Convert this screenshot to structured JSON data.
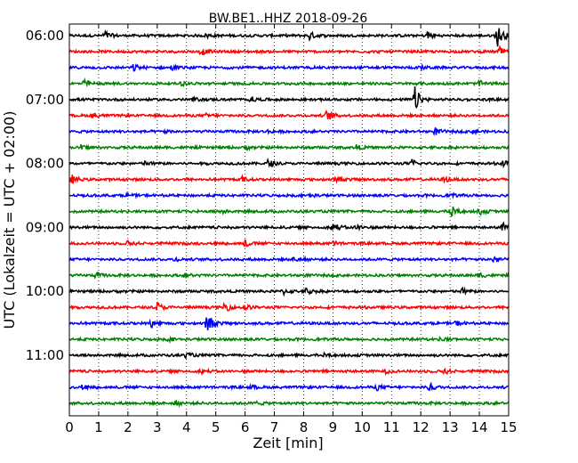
{
  "chart_data": {
    "type": "line",
    "title": "BW.BE1..HHZ 2018-09-26",
    "xlabel": "Zeit  [min]",
    "ylabel": "UTC (Lokalzeit = UTC + 02:00)",
    "xlim": [
      0,
      15
    ],
    "x_ticks": [
      "0",
      "1",
      "2",
      "3",
      "4",
      "5",
      "6",
      "7",
      "8",
      "9",
      "10",
      "11",
      "12",
      "13",
      "14",
      "15"
    ],
    "y_ticks": [
      "06:00",
      "07:00",
      "08:00",
      "09:00",
      "10:00",
      "11:00"
    ],
    "grid": "vertical-dotted",
    "color_cycle": [
      "#000000",
      "#ff0000",
      "#0000ff",
      "#008000"
    ],
    "series": [
      {
        "start": "06:00",
        "color": "#000000",
        "events": [
          {
            "t": 1.2,
            "a": 0.6
          },
          {
            "t": 4.7,
            "a": 0.3
          },
          {
            "t": 8.2,
            "a": 0.5
          },
          {
            "t": 12.2,
            "a": 0.7
          },
          {
            "t": 14.6,
            "a": 1.6
          }
        ]
      },
      {
        "start": "06:15",
        "color": "#ff0000",
        "events": [
          {
            "t": 4.5,
            "a": 0.4
          },
          {
            "t": 14.7,
            "a": 0.5
          }
        ]
      },
      {
        "start": "06:30",
        "color": "#0000ff",
        "events": [
          {
            "t": 2.2,
            "a": 0.4
          },
          {
            "t": 3.5,
            "a": 0.3
          },
          {
            "t": 12.0,
            "a": 0.2
          }
        ]
      },
      {
        "start": "06:45",
        "color": "#008000",
        "events": [
          {
            "t": 0.5,
            "a": 0.4
          },
          {
            "t": 3.8,
            "a": 0.2
          },
          {
            "t": 14.0,
            "a": 0.3
          }
        ]
      },
      {
        "start": "07:00",
        "color": "#000000",
        "events": [
          {
            "t": 4.2,
            "a": 0.2
          },
          {
            "t": 6.2,
            "a": 0.3
          },
          {
            "t": 11.8,
            "a": 1.5
          }
        ]
      },
      {
        "start": "07:15",
        "color": "#ff0000",
        "events": [
          {
            "t": 0.8,
            "a": 0.4
          },
          {
            "t": 4.7,
            "a": 0.2
          },
          {
            "t": 8.8,
            "a": 0.7
          }
        ]
      },
      {
        "start": "07:30",
        "color": "#0000ff",
        "events": [
          {
            "t": 3.2,
            "a": 0.2
          },
          {
            "t": 6.8,
            "a": 0.2
          },
          {
            "t": 12.5,
            "a": 0.4
          },
          {
            "t": 13.8,
            "a": 0.3
          }
        ]
      },
      {
        "start": "07:45",
        "color": "#008000",
        "events": [
          {
            "t": 0.4,
            "a": 0.3
          },
          {
            "t": 6.0,
            "a": 0.2
          },
          {
            "t": 9.8,
            "a": 0.3
          }
        ]
      },
      {
        "start": "08:00",
        "color": "#000000",
        "events": [
          {
            "t": 2.6,
            "a": 0.3
          },
          {
            "t": 6.8,
            "a": 0.5
          },
          {
            "t": 11.7,
            "a": 0.5
          },
          {
            "t": 14.8,
            "a": 0.4
          }
        ]
      },
      {
        "start": "08:15",
        "color": "#ff0000",
        "events": [
          {
            "t": 0.1,
            "a": 0.5
          },
          {
            "t": 5.9,
            "a": 0.3
          },
          {
            "t": 9.1,
            "a": 0.3
          },
          {
            "t": 12.8,
            "a": 0.3
          }
        ]
      },
      {
        "start": "08:30",
        "color": "#0000ff",
        "events": [
          {
            "t": 2.0,
            "a": 0.2
          },
          {
            "t": 8.2,
            "a": 0.2
          },
          {
            "t": 13.0,
            "a": 0.2
          }
        ]
      },
      {
        "start": "08:45",
        "color": "#008000",
        "events": [
          {
            "t": 5.2,
            "a": 0.2
          },
          {
            "t": 13.0,
            "a": 1.0
          },
          {
            "t": 14.0,
            "a": 0.4
          }
        ]
      },
      {
        "start": "09:00",
        "color": "#000000",
        "events": [
          {
            "t": 9.0,
            "a": 0.6
          },
          {
            "t": 9.8,
            "a": 0.4
          },
          {
            "t": 14.8,
            "a": 0.5
          }
        ]
      },
      {
        "start": "09:15",
        "color": "#ff0000",
        "events": [
          {
            "t": 2.0,
            "a": 0.3
          },
          {
            "t": 6.0,
            "a": 0.4
          },
          {
            "t": 9.0,
            "a": 0.2
          }
        ]
      },
      {
        "start": "09:30",
        "color": "#0000ff",
        "events": [
          {
            "t": 3.6,
            "a": 0.2
          },
          {
            "t": 7.7,
            "a": 0.4
          },
          {
            "t": 14.5,
            "a": 0.5
          }
        ]
      },
      {
        "start": "09:45",
        "color": "#008000",
        "events": [
          {
            "t": 0.9,
            "a": 0.3
          },
          {
            "t": 4.0,
            "a": 0.2
          },
          {
            "t": 14.0,
            "a": 0.3
          }
        ]
      },
      {
        "start": "10:00",
        "color": "#000000",
        "events": [
          {
            "t": 7.3,
            "a": 0.4
          },
          {
            "t": 8.1,
            "a": 0.4
          },
          {
            "t": 13.4,
            "a": 0.4
          }
        ]
      },
      {
        "start": "10:15",
        "color": "#ff0000",
        "events": [
          {
            "t": 3.0,
            "a": 0.6
          },
          {
            "t": 5.3,
            "a": 0.6
          },
          {
            "t": 6.0,
            "a": 0.3
          }
        ]
      },
      {
        "start": "10:30",
        "color": "#0000ff",
        "events": [
          {
            "t": 2.8,
            "a": 0.5
          },
          {
            "t": 4.7,
            "a": 1.3
          },
          {
            "t": 13.2,
            "a": 0.3
          }
        ]
      },
      {
        "start": "10:45",
        "color": "#008000",
        "events": [
          {
            "t": 3.4,
            "a": 0.2
          },
          {
            "t": 12.7,
            "a": 0.3
          }
        ]
      },
      {
        "start": "11:00",
        "color": "#000000",
        "events": [
          {
            "t": 4.0,
            "a": 0.3
          },
          {
            "t": 8.7,
            "a": 0.2
          }
        ]
      },
      {
        "start": "11:15",
        "color": "#ff0000",
        "events": [
          {
            "t": 4.5,
            "a": 0.2
          },
          {
            "t": 10.8,
            "a": 0.2
          },
          {
            "t": 12.8,
            "a": 0.3
          }
        ]
      },
      {
        "start": "11:30",
        "color": "#0000ff",
        "events": [
          {
            "t": 0.4,
            "a": 0.3
          },
          {
            "t": 6.2,
            "a": 0.2
          },
          {
            "t": 10.5,
            "a": 0.3
          },
          {
            "t": 12.3,
            "a": 0.5
          }
        ]
      },
      {
        "start": "11:45",
        "color": "#008000",
        "events": [
          {
            "t": 3.6,
            "a": 0.3
          },
          {
            "t": 6.4,
            "a": 0.2
          }
        ]
      }
    ]
  }
}
